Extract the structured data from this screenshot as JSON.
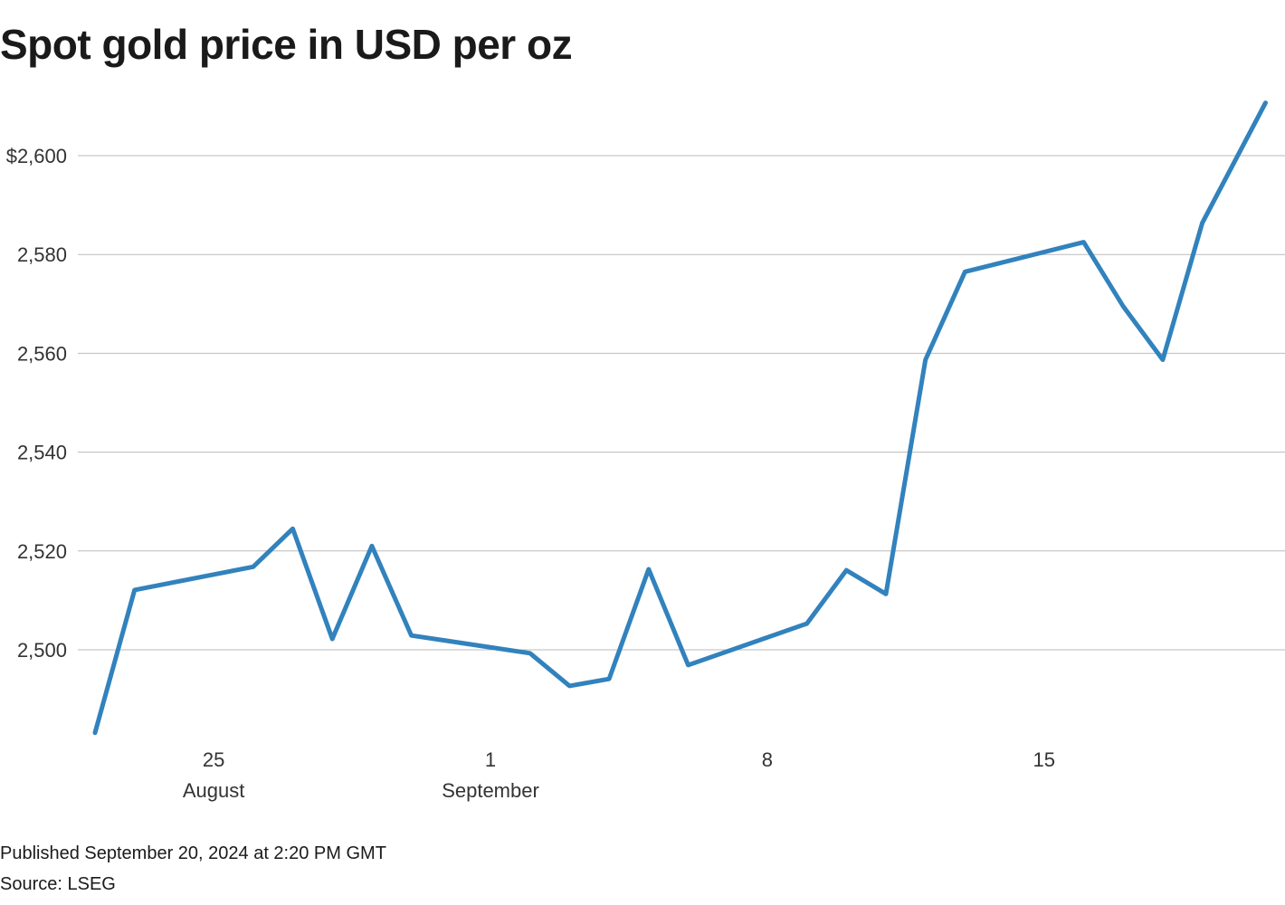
{
  "title": "Spot gold price in USD per oz",
  "footer": {
    "published": "Published September 20, 2024 at 2:20 PM GMT",
    "source": "Source: LSEG"
  },
  "colors": {
    "line": "#3182bd",
    "grid": "#bbbbbb",
    "text": "#333333"
  },
  "chart_data": {
    "type": "line",
    "title": "Spot gold price in USD per oz",
    "xlabel": "",
    "ylabel": "",
    "ylim": [
      2480,
      2612
    ],
    "grid": true,
    "legend": "none",
    "y_ticks": [
      {
        "value": 2600,
        "label": "$2,600"
      },
      {
        "value": 2580,
        "label": "2,580"
      },
      {
        "value": 2560,
        "label": "2,560"
      },
      {
        "value": 2540,
        "label": "2,540"
      },
      {
        "value": 2520,
        "label": "2,520"
      },
      {
        "value": 2500,
        "label": "2,500"
      }
    ],
    "x_ticks": [
      {
        "day": 3,
        "label": "25",
        "sublabel": "August"
      },
      {
        "day": 10,
        "label": "1",
        "sublabel": "September"
      },
      {
        "day": 17,
        "label": "8",
        "sublabel": ""
      },
      {
        "day": 24,
        "label": "15",
        "sublabel": ""
      }
    ],
    "series": [
      {
        "name": "Spot gold",
        "x": [
          "2024-08-22",
          "2024-08-23",
          "2024-08-26",
          "2024-08-27",
          "2024-08-28",
          "2024-08-29",
          "2024-08-30",
          "2024-09-02",
          "2024-09-03",
          "2024-09-04",
          "2024-09-05",
          "2024-09-06",
          "2024-09-09",
          "2024-09-10",
          "2024-09-11",
          "2024-09-12",
          "2024-09-13",
          "2024-09-16",
          "2024-09-17",
          "2024-09-18",
          "2024-09-19",
          "2024-09-20"
        ],
        "day_index": [
          0,
          1,
          4,
          5,
          6,
          7,
          8,
          11,
          12,
          13,
          14,
          15,
          18,
          19,
          20,
          21,
          22,
          25,
          26,
          27,
          28,
          29.6
        ],
        "values": [
          2483.2,
          2512.1,
          2516.8,
          2524.5,
          2502.2,
          2521.0,
          2502.9,
          2499.3,
          2492.7,
          2494.1,
          2516.3,
          2496.9,
          2505.3,
          2516.1,
          2511.3,
          2558.7,
          2576.5,
          2582.5,
          2569.5,
          2558.7,
          2586.4,
          2610.7
        ]
      }
    ]
  }
}
